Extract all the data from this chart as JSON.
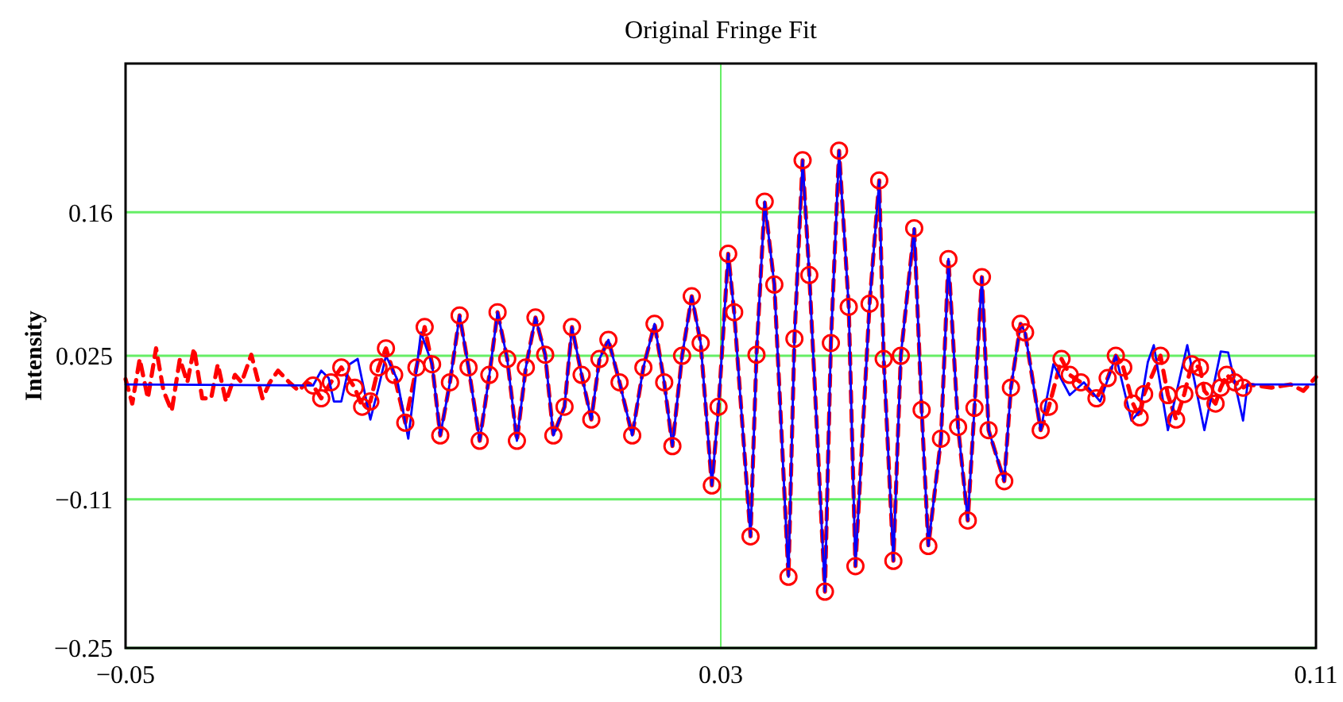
{
  "chart_data": {
    "type": "line",
    "title": "Original Fringe Fit",
    "ylabel": "Intensity",
    "xlim": [
      -0.05,
      0.11
    ],
    "xticks": [
      {
        "value": -0.05,
        "label": "−0.05"
      },
      0.03,
      0.11
    ],
    "ylim": [
      -0.25,
      0.3
    ],
    "yticks": [
      {
        "value": -0.25,
        "label": "−0.25"
      },
      {
        "value": -0.11,
        "label": "−0.11"
      },
      0.025,
      0.16
    ],
    "grid": "y",
    "ref_lines": [
      {
        "axis": "x",
        "value": 0.03,
        "color": "#66ee66"
      }
    ],
    "series": [
      {
        "color": "#ff0000",
        "line_style": "dashed",
        "x": [
          -0.05,
          -0.0491,
          -0.0481,
          -0.047,
          -0.0459,
          -0.0449,
          -0.0438,
          -0.0427,
          -0.0417,
          -0.0408,
          -0.0397,
          -0.0385,
          -0.0376,
          -0.0365,
          -0.0353,
          -0.0344,
          -0.0331,
          -0.0316,
          -0.0306,
          -0.0295,
          -0.028,
          -0.0267,
          -0.0257,
          -0.0248,
          -0.0237,
          -0.0224,
          -0.021,
          -0.0192,
          -0.0182,
          -0.0171,
          -0.016,
          -0.015,
          -0.0139,
          -0.0124,
          -0.0109,
          -0.0098,
          -0.0088,
          -0.0077,
          -0.0064,
          -0.0051,
          -0.0039,
          -0.0024,
          -0.0011,
          0.0,
          0.0013,
          0.0026,
          0.0038,
          0.0051,
          0.0064,
          0.0075,
          0.009,
          0.01,
          0.0113,
          0.0126,
          0.0137,
          0.0149,
          0.0164,
          0.0181,
          0.0196,
          0.0211,
          0.0224,
          0.0235,
          0.0248,
          0.0261,
          0.0273,
          0.0288,
          0.0297,
          0.031,
          0.0318,
          0.034,
          0.0348,
          0.0359,
          0.0372,
          0.0391,
          0.0399,
          0.041,
          0.0419,
          0.044,
          0.0448,
          0.0459,
          0.0472,
          0.0481,
          0.05,
          0.0513,
          0.0519,
          0.0532,
          0.0542,
          0.056,
          0.057,
          0.0579,
          0.0596,
          0.0606,
          0.0619,
          0.0632,
          0.0641,
          0.0651,
          0.066,
          0.0681,
          0.069,
          0.0703,
          0.0709,
          0.073,
          0.0741,
          0.0758,
          0.0769,
          0.0784,
          0.0805,
          0.082,
          0.0831,
          0.0841,
          0.0854,
          0.0863,
          0.0869,
          0.0891,
          0.0901,
          0.0912,
          0.0923,
          0.0933,
          0.0944,
          0.095,
          0.0965,
          0.0972,
          0.098,
          0.0991,
          0.1002,
          0.1009,
          0.104,
          0.1066,
          0.1083,
          0.11
        ],
        "values": [
          0.003,
          -0.02,
          0.022,
          -0.015,
          0.032,
          -0.008,
          -0.027,
          0.022,
          0.0,
          0.032,
          -0.015,
          -0.015,
          0.017,
          -0.018,
          0.007,
          0.0,
          0.026,
          -0.015,
          0.0,
          0.011,
          0.0,
          -0.008,
          0.0,
          -0.003,
          -0.015,
          0.0,
          0.014,
          -0.005,
          -0.023,
          -0.018,
          0.014,
          0.032,
          0.007,
          -0.038,
          0.014,
          0.052,
          0.017,
          -0.05,
          0.0,
          0.063,
          0.014,
          -0.055,
          0.007,
          0.066,
          0.022,
          -0.055,
          0.014,
          0.061,
          0.026,
          -0.05,
          -0.023,
          0.052,
          0.007,
          -0.035,
          0.022,
          0.04,
          0.0,
          -0.05,
          0.014,
          0.055,
          0.0,
          -0.06,
          0.025,
          0.081,
          0.037,
          -0.097,
          -0.023,
          0.121,
          0.066,
          -0.145,
          0.026,
          0.17,
          0.092,
          -0.183,
          0.041,
          0.209,
          0.101,
          -0.197,
          0.037,
          0.218,
          0.071,
          -0.173,
          0.074,
          0.19,
          0.022,
          -0.168,
          0.025,
          0.145,
          -0.026,
          -0.154,
          -0.053,
          0.116,
          -0.042,
          -0.13,
          -0.024,
          0.099,
          -0.045,
          -0.093,
          -0.005,
          0.055,
          0.047,
          -0.045,
          -0.023,
          0.022,
          0.007,
          0.0,
          -0.015,
          0.004,
          0.025,
          0.014,
          -0.02,
          -0.033,
          -0.011,
          0.025,
          -0.012,
          -0.035,
          -0.011,
          0.017,
          0.014,
          -0.008,
          -0.02,
          -0.005,
          0.007,
          0.0,
          -0.005,
          -0.002,
          -0.005,
          -0.002,
          -0.008,
          0.005
        ]
      },
      {
        "color": "#0000ff",
        "line_style": "solid",
        "x": [
          -0.05,
          -0.0248,
          -0.0237,
          -0.0227,
          -0.022,
          -0.021,
          -0.0199,
          -0.0188,
          -0.0171,
          -0.016,
          -0.015,
          -0.0135,
          -0.012,
          -0.0103,
          -0.0088,
          -0.0077,
          -0.0064,
          -0.0051,
          -0.0039,
          -0.0024,
          -0.0011,
          0.0,
          0.0013,
          0.0026,
          0.0038,
          0.0051,
          0.0064,
          0.0075,
          0.009,
          0.01,
          0.0113,
          0.0126,
          0.0137,
          0.0149,
          0.0164,
          0.0181,
          0.0196,
          0.0211,
          0.0224,
          0.0235,
          0.0248,
          0.0261,
          0.0273,
          0.0288,
          0.0297,
          0.031,
          0.0318,
          0.034,
          0.0348,
          0.0359,
          0.0372,
          0.0391,
          0.0399,
          0.041,
          0.0419,
          0.044,
          0.0448,
          0.0459,
          0.0472,
          0.0481,
          0.05,
          0.0513,
          0.0519,
          0.0532,
          0.0542,
          0.056,
          0.057,
          0.0579,
          0.0596,
          0.0606,
          0.0619,
          0.0632,
          0.0641,
          0.0651,
          0.066,
          0.0681,
          0.069,
          0.0703,
          0.0709,
          0.073,
          0.0747,
          0.0769,
          0.0788,
          0.081,
          0.0831,
          0.0852,
          0.0863,
          0.0874,
          0.0882,
          0.0901,
          0.0927,
          0.095,
          0.0972,
          0.0982,
          0.1002,
          0.1008,
          0.11
        ],
        "values": [
          -0.002,
          -0.003,
          0.011,
          0.004,
          -0.018,
          -0.018,
          0.017,
          0.022,
          -0.035,
          -0.005,
          0.025,
          0.003,
          -0.053,
          0.047,
          0.017,
          -0.05,
          0.0,
          0.063,
          0.014,
          -0.055,
          0.007,
          0.066,
          0.022,
          -0.055,
          0.014,
          0.061,
          0.026,
          -0.05,
          -0.023,
          0.052,
          0.007,
          -0.035,
          0.022,
          0.04,
          0.0,
          -0.05,
          0.014,
          0.055,
          0.0,
          -0.06,
          0.025,
          0.081,
          0.037,
          -0.097,
          -0.023,
          0.121,
          0.066,
          -0.145,
          0.026,
          0.17,
          0.092,
          -0.183,
          0.041,
          0.209,
          0.101,
          -0.197,
          0.037,
          0.218,
          0.071,
          -0.173,
          0.074,
          0.19,
          0.022,
          -0.168,
          0.025,
          0.145,
          -0.026,
          -0.154,
          -0.053,
          0.116,
          -0.042,
          -0.13,
          -0.024,
          0.099,
          -0.045,
          -0.093,
          -0.005,
          0.055,
          0.047,
          -0.045,
          0.017,
          -0.012,
          0.0,
          -0.018,
          0.025,
          -0.036,
          -0.027,
          0.019,
          0.035,
          -0.045,
          0.035,
          -0.045,
          0.029,
          0.028,
          -0.036,
          -0.002,
          -0.002
        ]
      },
      {
        "type": "scatter",
        "color": "#ff0000",
        "marker": "circle",
        "x": [
          -0.0248,
          -0.0237,
          -0.0224,
          -0.021,
          -0.0192,
          -0.0182,
          -0.0171,
          -0.016,
          -0.015,
          -0.0139,
          -0.0124,
          -0.0109,
          -0.0098,
          -0.0088,
          -0.0077,
          -0.0064,
          -0.0051,
          -0.0039,
          -0.0024,
          -0.0011,
          0.0,
          0.0013,
          0.0026,
          0.0038,
          0.0051,
          0.0064,
          0.0075,
          0.009,
          0.01,
          0.0113,
          0.0126,
          0.0137,
          0.0149,
          0.0164,
          0.0181,
          0.0196,
          0.0211,
          0.0224,
          0.0235,
          0.0248,
          0.0261,
          0.0273,
          0.0288,
          0.0297,
          0.031,
          0.0318,
          0.034,
          0.0348,
          0.0359,
          0.0372,
          0.0391,
          0.0399,
          0.041,
          0.0419,
          0.044,
          0.0448,
          0.0459,
          0.0472,
          0.0481,
          0.05,
          0.0513,
          0.0519,
          0.0532,
          0.0542,
          0.056,
          0.057,
          0.0579,
          0.0596,
          0.0606,
          0.0619,
          0.0632,
          0.0641,
          0.0651,
          0.066,
          0.0681,
          0.069,
          0.0703,
          0.0709,
          0.073,
          0.0741,
          0.0758,
          0.0769,
          0.0784,
          0.0805,
          0.082,
          0.0831,
          0.0841,
          0.0854,
          0.0863,
          0.0869,
          0.0891,
          0.0901,
          0.0912,
          0.0923,
          0.0933,
          0.0944,
          0.095,
          0.0965,
          0.0972,
          0.098,
          0.0991,
          0.1002
        ],
        "values": [
          -0.003,
          -0.015,
          0.0,
          0.014,
          -0.005,
          -0.023,
          -0.018,
          0.014,
          0.032,
          0.007,
          -0.038,
          0.014,
          0.052,
          0.017,
          -0.05,
          0.0,
          0.063,
          0.014,
          -0.055,
          0.007,
          0.066,
          0.022,
          -0.055,
          0.014,
          0.061,
          0.026,
          -0.05,
          -0.023,
          0.052,
          0.007,
          -0.035,
          0.022,
          0.04,
          0.0,
          -0.05,
          0.014,
          0.055,
          0.0,
          -0.06,
          0.025,
          0.081,
          0.037,
          -0.097,
          -0.023,
          0.121,
          0.066,
          -0.145,
          0.026,
          0.17,
          0.092,
          -0.183,
          0.041,
          0.209,
          0.101,
          -0.197,
          0.037,
          0.218,
          0.071,
          -0.173,
          0.074,
          0.19,
          0.022,
          -0.168,
          0.025,
          0.145,
          -0.026,
          -0.154,
          -0.053,
          0.116,
          -0.042,
          -0.13,
          -0.024,
          0.099,
          -0.045,
          -0.093,
          -0.005,
          0.055,
          0.047,
          -0.045,
          -0.023,
          0.022,
          0.007,
          0.0,
          -0.015,
          0.004,
          0.025,
          0.014,
          -0.02,
          -0.033,
          -0.011,
          0.025,
          -0.012,
          -0.035,
          -0.011,
          0.017,
          0.014,
          -0.008,
          -0.02,
          -0.005,
          0.007,
          0.0,
          -0.005
        ]
      }
    ]
  }
}
